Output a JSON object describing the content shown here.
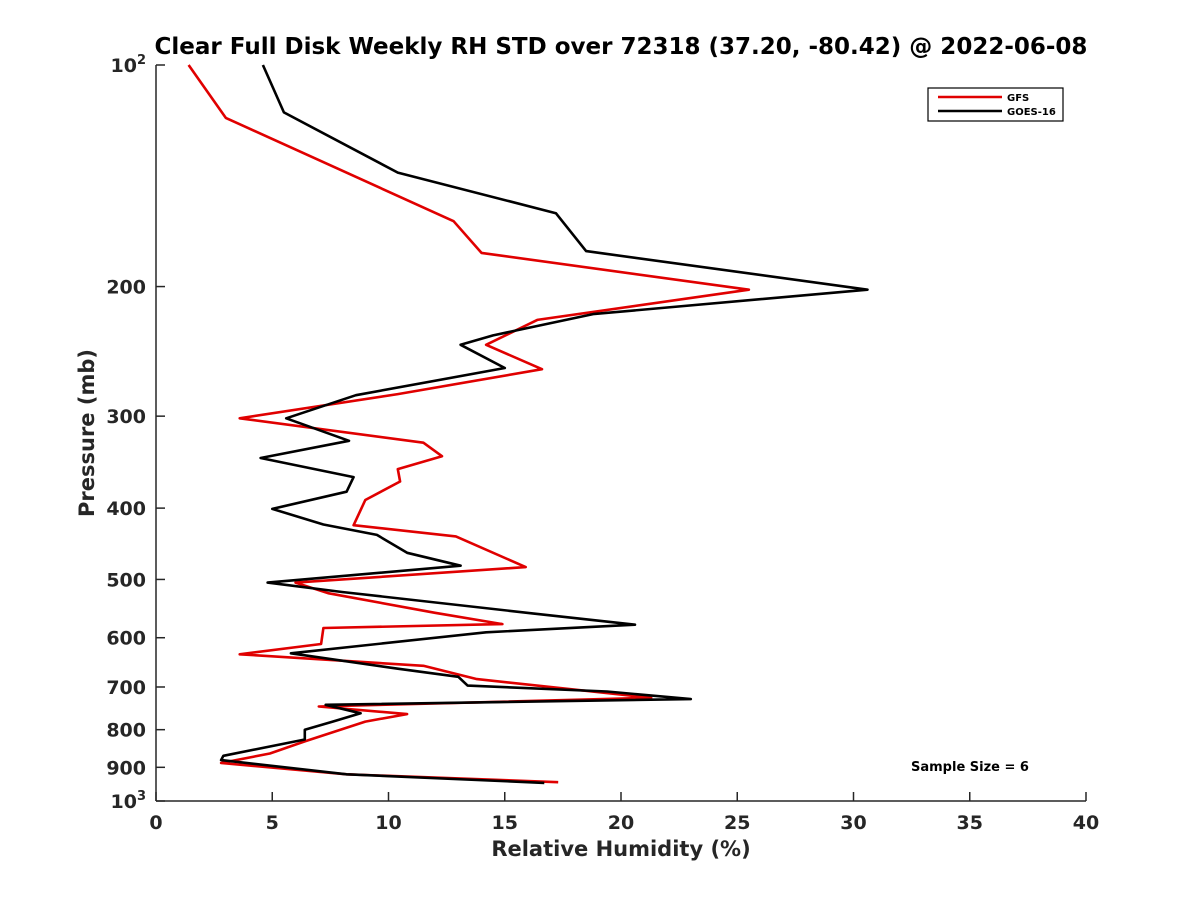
{
  "chart_data": {
    "type": "line",
    "title": "Clear Full Disk Weekly RH STD over 72318 (37.20, -80.42) @ 2022-06-08",
    "xlabel": "Relative Humidity (%)",
    "ylabel": "Pressure (mb)",
    "xlim": [
      0,
      40
    ],
    "ylim": [
      100,
      1000
    ],
    "y_scale": "log",
    "y_reversed": true,
    "x_ticks": [
      "0",
      "5",
      "10",
      "15",
      "20",
      "25",
      "30",
      "35",
      "40"
    ],
    "y_ticks": [
      {
        "value": 100,
        "base": "10",
        "exp": "2"
      },
      {
        "value": 200,
        "base": "200",
        "exp": ""
      },
      {
        "value": 300,
        "base": "300",
        "exp": ""
      },
      {
        "value": 400,
        "base": "400",
        "exp": ""
      },
      {
        "value": 500,
        "base": "500",
        "exp": ""
      },
      {
        "value": 600,
        "base": "600",
        "exp": ""
      },
      {
        "value": 700,
        "base": "700",
        "exp": ""
      },
      {
        "value": 800,
        "base": "800",
        "exp": ""
      },
      {
        "value": 900,
        "base": "900",
        "exp": ""
      },
      {
        "value": 1000,
        "base": "10",
        "exp": "3"
      }
    ],
    "legend_position": "top-right",
    "annotation": "Sample Size = 6",
    "series": [
      {
        "name": "GFS",
        "color": "#e00000",
        "points": [
          [
            1.4,
            100
          ],
          [
            3.0,
            118
          ],
          [
            12.8,
            163
          ],
          [
            14.0,
            180
          ],
          [
            25.5,
            202
          ],
          [
            16.4,
            222
          ],
          [
            14.2,
            240
          ],
          [
            16.6,
            259
          ],
          [
            10.4,
            280
          ],
          [
            3.6,
            302
          ],
          [
            11.5,
            326
          ],
          [
            12.3,
            340
          ],
          [
            10.4,
            354
          ],
          [
            10.5,
            368
          ],
          [
            9.0,
            390
          ],
          [
            8.5,
            422
          ],
          [
            12.9,
            437
          ],
          [
            15.9,
            481
          ],
          [
            6.0,
            505
          ],
          [
            7.4,
            522
          ],
          [
            12.0,
            555
          ],
          [
            14.9,
            575
          ],
          [
            7.2,
            582
          ],
          [
            7.1,
            612
          ],
          [
            3.6,
            632
          ],
          [
            11.5,
            655
          ],
          [
            13.8,
            683
          ],
          [
            21.3,
            724
          ],
          [
            7.0,
            744
          ],
          [
            10.8,
            762
          ],
          [
            9.0,
            780
          ],
          [
            6.4,
            830
          ],
          [
            4.9,
            862
          ],
          [
            2.8,
            888
          ],
          [
            8.2,
            920
          ],
          [
            17.3,
            943
          ]
        ]
      },
      {
        "name": "GOES-16",
        "color": "#000000",
        "points": [
          [
            4.6,
            100
          ],
          [
            5.5,
            116
          ],
          [
            10.4,
            140
          ],
          [
            17.2,
            159
          ],
          [
            18.5,
            179
          ],
          [
            30.6,
            202
          ],
          [
            18.8,
            218
          ],
          [
            14.5,
            233
          ],
          [
            13.1,
            240
          ],
          [
            15.0,
            258
          ],
          [
            8.6,
            281
          ],
          [
            5.6,
            302
          ],
          [
            8.3,
            324
          ],
          [
            4.5,
            342
          ],
          [
            8.5,
            363
          ],
          [
            8.2,
            380
          ],
          [
            5.0,
            401
          ],
          [
            7.2,
            421
          ],
          [
            9.5,
            435
          ],
          [
            10.8,
            460
          ],
          [
            13.1,
            479
          ],
          [
            4.8,
            505
          ],
          [
            8.0,
            520
          ],
          [
            16.2,
            556
          ],
          [
            20.6,
            576
          ],
          [
            14.2,
            590
          ],
          [
            5.8,
            630
          ],
          [
            10.4,
            661
          ],
          [
            13.0,
            678
          ],
          [
            13.4,
            697
          ],
          [
            19.4,
            710
          ],
          [
            23.0,
            727
          ],
          [
            7.3,
            740
          ],
          [
            8.8,
            760
          ],
          [
            7.6,
            780
          ],
          [
            6.4,
            800
          ],
          [
            6.4,
            825
          ],
          [
            2.9,
            868
          ],
          [
            2.8,
            880
          ],
          [
            8.2,
            920
          ],
          [
            16.7,
            945
          ]
        ]
      }
    ]
  }
}
